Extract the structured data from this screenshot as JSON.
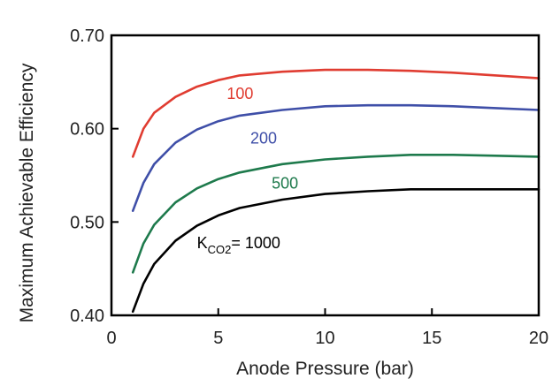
{
  "chart_data": {
    "type": "line",
    "title": "",
    "xlabel": "Anode Pressure (bar)",
    "ylabel": "Maximum Achievable Efficiency",
    "xlim": [
      0,
      20
    ],
    "ylim": [
      0.4,
      0.7
    ],
    "xticks": [
      0,
      5,
      10,
      15,
      20
    ],
    "xtick_labels": [
      "0",
      "5",
      "10",
      "15",
      "20"
    ],
    "yticks": [
      0.4,
      0.5,
      0.6,
      0.7
    ],
    "ytick_labels": [
      "0.40",
      "0.50",
      "0.60",
      "0.70"
    ],
    "grid": false,
    "legend": "none (inline curve labels)",
    "series": [
      {
        "name": "100",
        "color": "#e03c31",
        "x": [
          1,
          1.5,
          2,
          3,
          4,
          5,
          6,
          8,
          10,
          12,
          14,
          16,
          18,
          20
        ],
        "y": [
          0.57,
          0.6,
          0.617,
          0.634,
          0.645,
          0.652,
          0.657,
          0.661,
          0.663,
          0.663,
          0.662,
          0.66,
          0.657,
          0.654
        ]
      },
      {
        "name": "200",
        "color": "#3f4fa8",
        "x": [
          1,
          1.5,
          2,
          3,
          4,
          5,
          6,
          8,
          10,
          12,
          14,
          16,
          18,
          20
        ],
        "y": [
          0.512,
          0.542,
          0.562,
          0.585,
          0.599,
          0.608,
          0.614,
          0.62,
          0.624,
          0.625,
          0.625,
          0.624,
          0.622,
          0.62
        ]
      },
      {
        "name": "500",
        "color": "#1e7a4c",
        "x": [
          1,
          1.5,
          2,
          3,
          4,
          5,
          6,
          8,
          10,
          12,
          14,
          16,
          18,
          20
        ],
        "y": [
          0.446,
          0.477,
          0.497,
          0.521,
          0.536,
          0.546,
          0.553,
          0.562,
          0.567,
          0.57,
          0.572,
          0.572,
          0.571,
          0.57
        ]
      },
      {
        "name": "1000",
        "color": "#000000",
        "x": [
          1,
          1.5,
          2,
          3,
          4,
          5,
          6,
          8,
          10,
          12,
          14,
          16,
          18,
          20
        ],
        "y": [
          0.404,
          0.434,
          0.455,
          0.48,
          0.496,
          0.507,
          0.515,
          0.524,
          0.53,
          0.533,
          0.535,
          0.535,
          0.535,
          0.535
        ]
      }
    ],
    "annotations": [
      {
        "text": "100",
        "color": "#e03c31",
        "x": 5.4,
        "y": 0.632
      },
      {
        "text": "200",
        "color": "#3f4fa8",
        "x": 6.5,
        "y": 0.584
      },
      {
        "text": "500",
        "color": "#1e7a4c",
        "x": 7.5,
        "y": 0.536
      },
      {
        "text_main": "K",
        "text_sub": "CO2",
        "text_tail": "= 1000",
        "color": "#000000",
        "x": 4.0,
        "y": 0.472
      }
    ]
  }
}
